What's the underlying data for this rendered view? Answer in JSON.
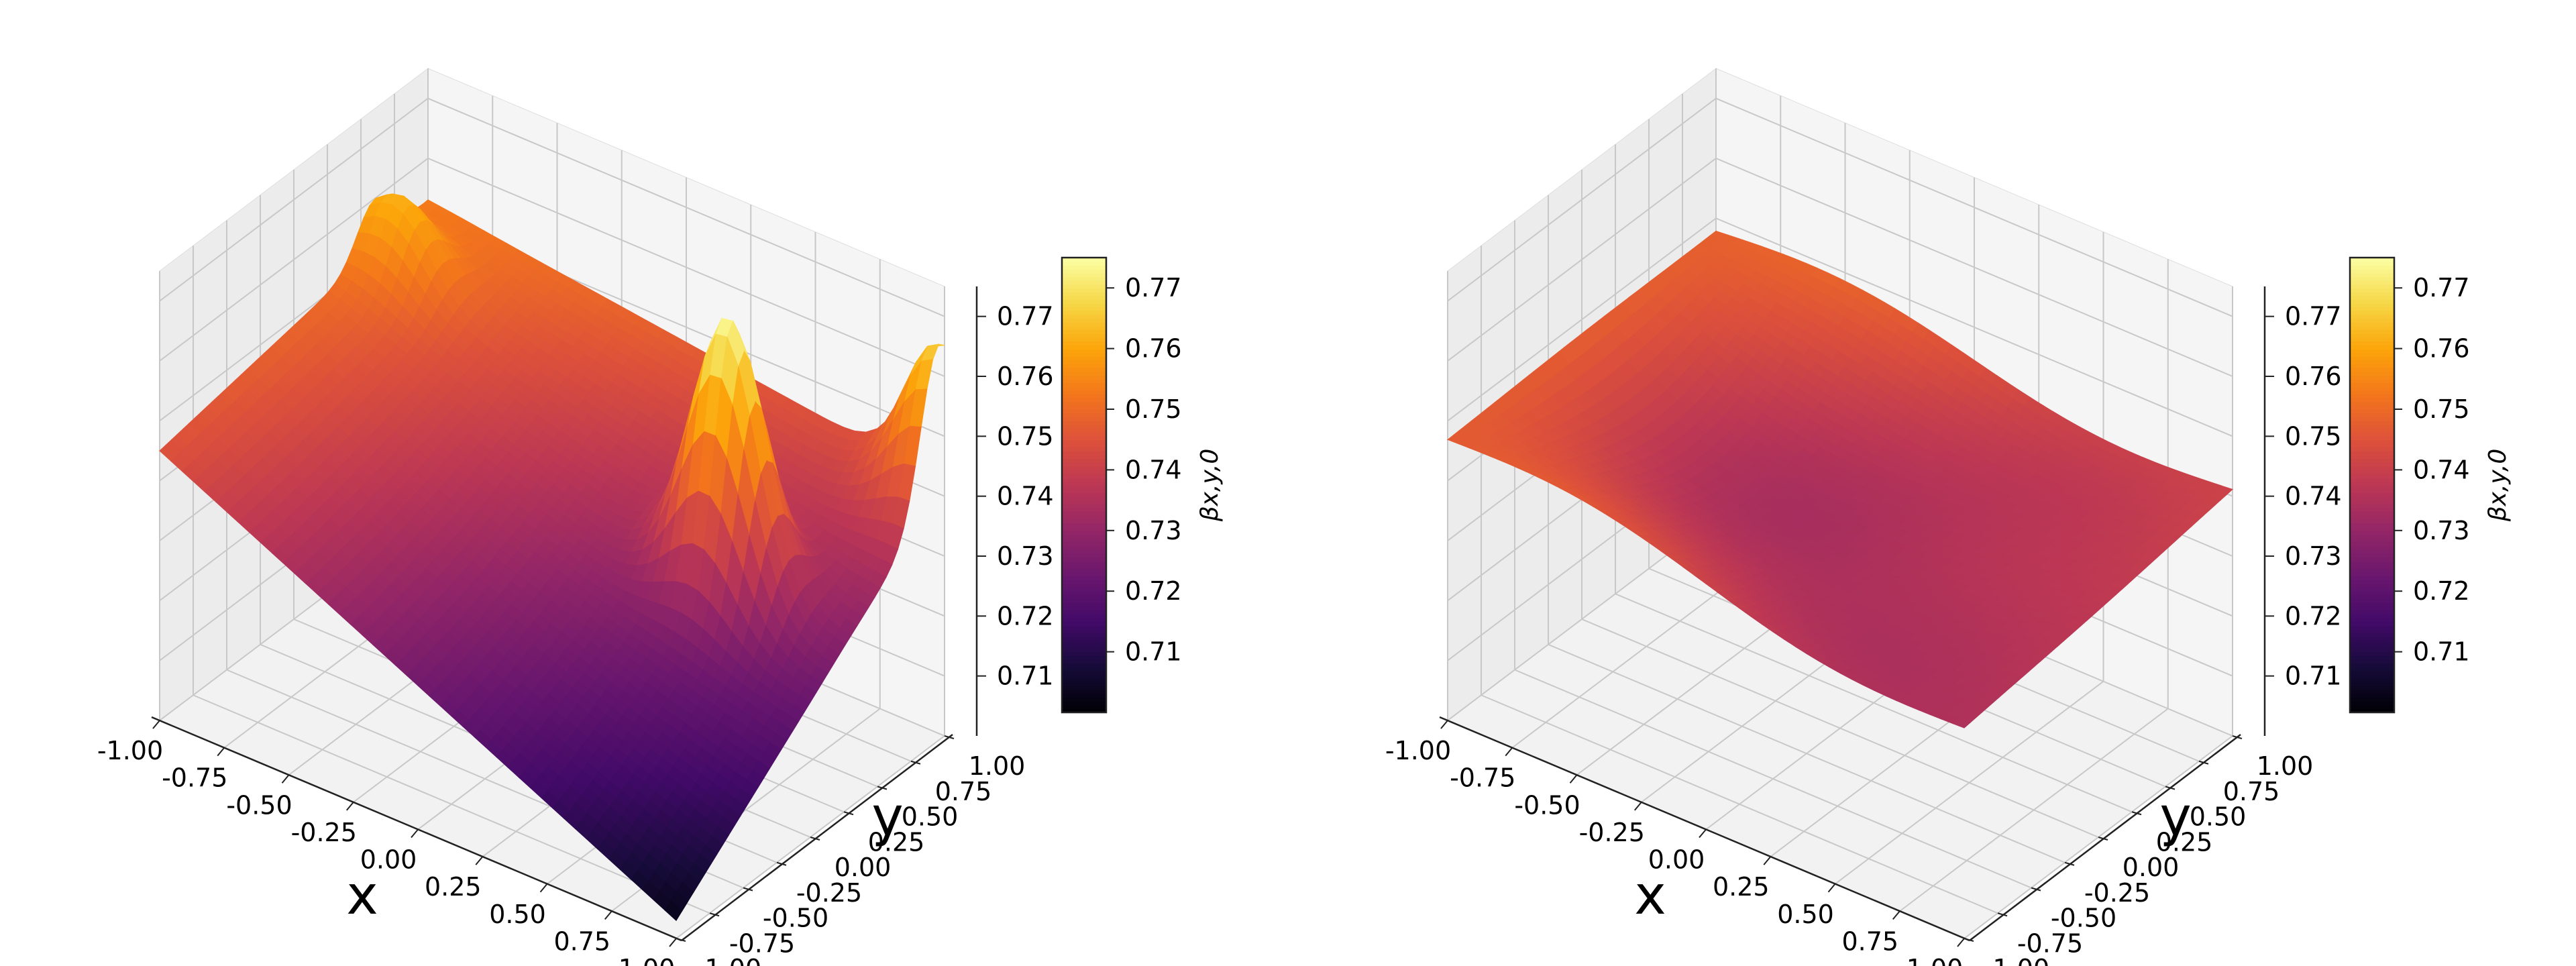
{
  "chart_data": [
    {
      "type": "surface3d",
      "xlabel": "x",
      "ylabel": "y",
      "zlabel": "",
      "xlim": [
        -1.0,
        1.0
      ],
      "ylim": [
        -1.0,
        1.0
      ],
      "zlim": [
        0.7,
        0.775
      ],
      "x_ticks": [
        "-1.00",
        "-0.75",
        "-0.50",
        "-0.25",
        "0.00",
        "0.25",
        "0.50",
        "0.75",
        "1.00"
      ],
      "y_ticks": [
        "-1.00",
        "-0.75",
        "-0.50",
        "-0.25",
        "0.00",
        "0.25",
        "0.50",
        "0.75",
        "1.00"
      ],
      "z_ticks": [
        "0.71",
        "0.72",
        "0.73",
        "0.74",
        "0.75",
        "0.76",
        "0.77"
      ],
      "colormap": "inferno",
      "grid": true,
      "colorbar": {
        "label": "βx,y,0",
        "range": [
          0.7,
          0.775
        ],
        "ticks": [
          "0.71",
          "0.72",
          "0.73",
          "0.74",
          "0.75",
          "0.76",
          "0.77"
        ]
      },
      "corner_values": {
        "x=-1,y=-1": 0.745,
        "x=1,y=-1": 0.703,
        "x=1,y=1": 0.742,
        "x=-1,y=1": 0.753
      },
      "center_value": 0.733,
      "peaks": [
        {
          "x": 0.55,
          "y": 0.25,
          "z": 0.776
        },
        {
          "x": -0.9,
          "y": 0.6,
          "z": 0.762
        },
        {
          "x": 1.0,
          "y": 0.95,
          "z": 0.766
        }
      ],
      "min_value": 0.703
    },
    {
      "type": "surface3d",
      "xlabel": "x",
      "ylabel": "y",
      "zlabel": "",
      "xlim": [
        -1.0,
        1.0
      ],
      "ylim": [
        -1.0,
        1.0
      ],
      "zlim": [
        0.7,
        0.775
      ],
      "x_ticks": [
        "-1.00",
        "-0.75",
        "-0.50",
        "-0.25",
        "0.00",
        "0.25",
        "0.50",
        "0.75",
        "1.00"
      ],
      "y_ticks": [
        "-1.00",
        "-0.75",
        "-0.50",
        "-0.25",
        "0.00",
        "0.25",
        "0.50",
        "0.75",
        "1.00"
      ],
      "z_ticks": [
        "0.71",
        "0.72",
        "0.73",
        "0.74",
        "0.75",
        "0.76",
        "0.77"
      ],
      "colormap": "inferno",
      "grid": true,
      "colorbar": {
        "label": "βx,y,0",
        "range": [
          0.7,
          0.775
        ],
        "ticks": [
          "0.71",
          "0.72",
          "0.73",
          "0.74",
          "0.75",
          "0.76",
          "0.77"
        ]
      },
      "corner_values": {
        "x=-1,y=-1": 0.747,
        "x=1,y=-1": 0.735,
        "x=1,y=1": 0.741,
        "x=-1,y=1": 0.748
      },
      "center_value": 0.734,
      "min_value": 0.729,
      "max_value": 0.748
    }
  ]
}
